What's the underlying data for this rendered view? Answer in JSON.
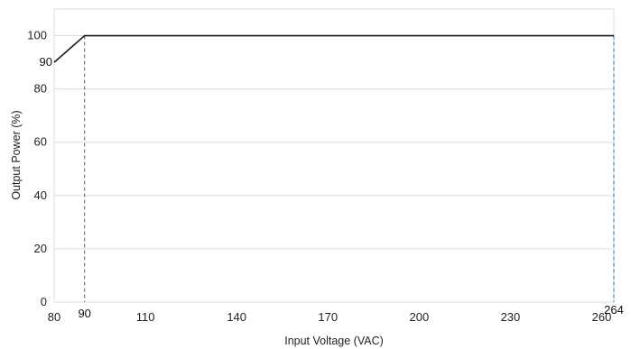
{
  "chart_data": {
    "type": "line",
    "title": "",
    "xlabel": "Input Voltage (VAC)",
    "ylabel": "Output Power (%)",
    "xlim": [
      80,
      264
    ],
    "ylim": [
      0,
      110
    ],
    "x_ticks": [
      80,
      110,
      140,
      170,
      200,
      230,
      260
    ],
    "y_ticks": [
      0,
      20,
      40,
      60,
      80,
      100
    ],
    "annotated_x_ticks": [
      90,
      264
    ],
    "annotated_y_ticks": [
      90
    ],
    "series": [
      {
        "x": [
          80,
          90,
          264
        ],
        "y": [
          90,
          100,
          100
        ],
        "color": "#1a1a1a"
      }
    ],
    "reference_lines": [
      {
        "x": 90,
        "y_to": 100,
        "style": "dashed",
        "color": "#2f6f9f"
      },
      {
        "x": 264,
        "y_to": 100,
        "style": "dashed",
        "color": "#2f6f9f"
      }
    ],
    "grid": "horizontal",
    "legend": "none"
  }
}
